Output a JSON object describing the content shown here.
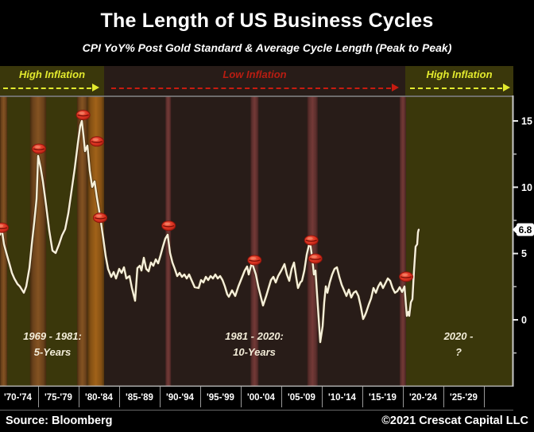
{
  "title": "The Length of US Business Cycles",
  "subtitle": "CPI YoY% Post Gold Standard & Average Cycle Length (Peak to Peak)",
  "header": {
    "left_label": "High Inflation",
    "mid_label": "Low Inflation",
    "right_label": "High Inflation"
  },
  "annotations": [
    {
      "line1": "1969 - 1981:",
      "line2": "5-Years"
    },
    {
      "line1": "1981 - 2020:",
      "line2": "10-Years"
    },
    {
      "line1": "2020 -",
      "line2": "?"
    }
  ],
  "footer": {
    "source": "Source: Bloomberg",
    "copyright": "©2021 Crescat Capital LLC"
  },
  "colors": {
    "accent_yellow": "#e3ea2e",
    "accent_red": "#b81d12",
    "line": "#f6f0da",
    "bg_high_inflation": "#3a370b",
    "bg_low_inflation": "#281c18",
    "marker_red": "#d8301f",
    "axis": "#c8c8c8"
  },
  "chart_data": {
    "type": "line",
    "title": "CPI YoY% Post Gold Standard",
    "ylabel": "CPI YoY %",
    "xlim_years": [
      1970.3,
      2033.6
    ],
    "ylim": [
      -5.0,
      16.9
    ],
    "grid": false,
    "legend": "none",
    "y_major_ticks": [
      0,
      5,
      10,
      15
    ],
    "y_minor_ticks": [
      -2.5,
      2.5,
      7.5,
      12.5
    ],
    "x_tick_labels": [
      "'70-'74",
      "'75-'79",
      "'80-'84",
      "'85-'89",
      "'90-'94",
      "'95-'99",
      "'00-'04",
      "'05-'09",
      "'10-'14",
      "'15-'19",
      "'20-'24",
      "'25-'29"
    ],
    "x_tick_start_year": 1970,
    "x_tick_step_years": 5,
    "current_value": 6.8,
    "current_value_label": "6.8",
    "region_boundaries_years": [
      1983.15,
      2020.3
    ],
    "regions": [
      "High Inflation",
      "Low Inflation",
      "High Inflation"
    ],
    "recession_bands": [
      {
        "from": 1969.7,
        "to": 1971.2,
        "tone": "brown"
      },
      {
        "from": 1974.0,
        "to": 1976.0,
        "tone": "brown"
      },
      {
        "from": 1979.8,
        "to": 1981.1,
        "tone": "brown"
      },
      {
        "from": 1981.1,
        "to": 1983.15,
        "tone": "orange"
      },
      {
        "from": 1990.7,
        "to": 1991.4,
        "tone": "red"
      },
      {
        "from": 2001.2,
        "to": 2002.2,
        "tone": "red"
      },
      {
        "from": 2008.2,
        "to": 2009.5,
        "tone": "red"
      },
      {
        "from": 2019.6,
        "to": 2020.4,
        "tone": "red"
      }
    ],
    "cycle_peak_markers": [
      [
        1970.5,
        6.95
      ],
      [
        1975.1,
        12.9
      ],
      [
        1980.55,
        15.45
      ],
      [
        1982.25,
        13.45
      ],
      [
        1982.65,
        7.7
      ],
      [
        1991.1,
        7.1
      ],
      [
        2001.7,
        4.5
      ],
      [
        2008.7,
        6.0
      ],
      [
        2009.2,
        4.62
      ],
      [
        2020.4,
        3.25
      ]
    ],
    "series": [
      {
        "name": "CPI YoY%",
        "points": [
          [
            1970.29,
            6.42
          ],
          [
            1970.49,
            6.95
          ],
          [
            1970.78,
            5.7
          ],
          [
            1971.08,
            5.04
          ],
          [
            1971.47,
            4.2
          ],
          [
            1971.76,
            3.54
          ],
          [
            1972.06,
            3.12
          ],
          [
            1972.45,
            2.7
          ],
          [
            1972.75,
            2.52
          ],
          [
            1973.24,
            2.04
          ],
          [
            1973.53,
            2.52
          ],
          [
            1973.92,
            3.9
          ],
          [
            1974.22,
            5.7
          ],
          [
            1974.51,
            7.32
          ],
          [
            1974.8,
            9.1
          ],
          [
            1975.0,
            12.36
          ],
          [
            1975.29,
            11.52
          ],
          [
            1975.59,
            10.44
          ],
          [
            1975.98,
            8.64
          ],
          [
            1976.37,
            6.72
          ],
          [
            1976.76,
            5.22
          ],
          [
            1977.16,
            5.04
          ],
          [
            1977.55,
            5.64
          ],
          [
            1977.94,
            6.36
          ],
          [
            1978.33,
            6.84
          ],
          [
            1978.73,
            8.04
          ],
          [
            1979.12,
            9.72
          ],
          [
            1979.51,
            11.4
          ],
          [
            1979.9,
            13.32
          ],
          [
            1980.2,
            14.64
          ],
          [
            1980.39,
            15.0
          ],
          [
            1980.59,
            13.92
          ],
          [
            1980.78,
            12.72
          ],
          [
            1981.08,
            13.14
          ],
          [
            1981.37,
            11.22
          ],
          [
            1981.67,
            10.02
          ],
          [
            1981.96,
            10.44
          ],
          [
            1982.25,
            9.24
          ],
          [
            1982.65,
            7.8
          ],
          [
            1983.04,
            6.12
          ],
          [
            1983.33,
            4.8
          ],
          [
            1983.63,
            3.84
          ],
          [
            1984.02,
            3.24
          ],
          [
            1984.31,
            3.6
          ],
          [
            1984.61,
            3.12
          ],
          [
            1985.0,
            3.84
          ],
          [
            1985.29,
            3.54
          ],
          [
            1985.59,
            3.96
          ],
          [
            1985.88,
            3.12
          ],
          [
            1986.27,
            3.3
          ],
          [
            1986.57,
            2.4
          ],
          [
            1986.96,
            1.44
          ],
          [
            1987.25,
            3.9
          ],
          [
            1987.55,
            4.08
          ],
          [
            1987.75,
            3.72
          ],
          [
            1988.04,
            4.68
          ],
          [
            1988.33,
            3.84
          ],
          [
            1988.63,
            3.66
          ],
          [
            1988.92,
            4.32
          ],
          [
            1989.22,
            4.08
          ],
          [
            1989.51,
            4.56
          ],
          [
            1989.8,
            4.26
          ],
          [
            1990.1,
            4.86
          ],
          [
            1990.39,
            5.52
          ],
          [
            1990.69,
            6.12
          ],
          [
            1990.98,
            6.42
          ],
          [
            1991.27,
            5.04
          ],
          [
            1991.57,
            4.32
          ],
          [
            1991.86,
            3.84
          ],
          [
            1992.16,
            3.3
          ],
          [
            1992.45,
            3.54
          ],
          [
            1992.75,
            3.24
          ],
          [
            1993.04,
            3.42
          ],
          [
            1993.33,
            3.12
          ],
          [
            1993.63,
            3.42
          ],
          [
            1993.92,
            3.0
          ],
          [
            1994.31,
            2.46
          ],
          [
            1994.8,
            2.4
          ],
          [
            1995.1,
            3.0
          ],
          [
            1995.39,
            2.82
          ],
          [
            1995.69,
            3.24
          ],
          [
            1995.98,
            3.0
          ],
          [
            1996.27,
            3.3
          ],
          [
            1996.57,
            3.12
          ],
          [
            1996.86,
            3.42
          ],
          [
            1997.16,
            3.12
          ],
          [
            1997.45,
            3.3
          ],
          [
            1997.75,
            3.0
          ],
          [
            1998.04,
            2.52
          ],
          [
            1998.33,
            1.92
          ],
          [
            1998.53,
            1.74
          ],
          [
            1998.92,
            2.22
          ],
          [
            1999.31,
            1.8
          ],
          [
            1999.71,
            2.52
          ],
          [
            2000.1,
            3.12
          ],
          [
            2000.49,
            3.72
          ],
          [
            2000.78,
            4.02
          ],
          [
            2000.98,
            3.42
          ],
          [
            2001.37,
            4.32
          ],
          [
            2001.86,
            3.42
          ],
          [
            2002.16,
            2.52
          ],
          [
            2002.45,
            1.8
          ],
          [
            2002.75,
            1.08
          ],
          [
            2003.14,
            1.8
          ],
          [
            2003.43,
            2.4
          ],
          [
            2003.73,
            3.0
          ],
          [
            2004.02,
            3.24
          ],
          [
            2004.31,
            2.82
          ],
          [
            2004.61,
            3.3
          ],
          [
            2005.0,
            3.72
          ],
          [
            2005.39,
            4.2
          ],
          [
            2005.69,
            3.42
          ],
          [
            2005.98,
            2.94
          ],
          [
            2006.27,
            3.84
          ],
          [
            2006.57,
            4.32
          ],
          [
            2006.86,
            3.12
          ],
          [
            2007.06,
            2.4
          ],
          [
            2007.35,
            2.82
          ],
          [
            2007.55,
            2.94
          ],
          [
            2007.84,
            3.72
          ],
          [
            2008.14,
            4.92
          ],
          [
            2008.53,
            5.94
          ],
          [
            2008.82,
            4.62
          ],
          [
            2009.02,
            3.42
          ],
          [
            2009.22,
            3.72
          ],
          [
            2009.41,
            1.92
          ],
          [
            2009.61,
            0.12
          ],
          [
            2009.8,
            -1.68
          ],
          [
            2010.1,
            -0.48
          ],
          [
            2010.29,
            1.32
          ],
          [
            2010.49,
            2.52
          ],
          [
            2010.69,
            2.04
          ],
          [
            2010.98,
            2.82
          ],
          [
            2011.27,
            3.42
          ],
          [
            2011.57,
            3.84
          ],
          [
            2011.86,
            3.96
          ],
          [
            2012.16,
            3.24
          ],
          [
            2012.45,
            2.64
          ],
          [
            2012.75,
            2.22
          ],
          [
            2013.04,
            1.8
          ],
          [
            2013.33,
            2.28
          ],
          [
            2013.63,
            1.68
          ],
          [
            2013.92,
            2.04
          ],
          [
            2014.22,
            2.16
          ],
          [
            2014.51,
            1.8
          ],
          [
            2014.8,
            1.02
          ],
          [
            2015.1,
            0.06
          ],
          [
            2015.29,
            0.3
          ],
          [
            2015.49,
            0.6
          ],
          [
            2015.78,
            1.14
          ],
          [
            2016.08,
            1.62
          ],
          [
            2016.37,
            2.4
          ],
          [
            2016.67,
            2.04
          ],
          [
            2016.96,
            2.52
          ],
          [
            2017.25,
            2.82
          ],
          [
            2017.55,
            2.4
          ],
          [
            2017.84,
            2.76
          ],
          [
            2018.14,
            3.12
          ],
          [
            2018.43,
            2.94
          ],
          [
            2018.73,
            2.4
          ],
          [
            2019.02,
            2.04
          ],
          [
            2019.31,
            2.16
          ],
          [
            2019.61,
            2.46
          ],
          [
            2019.9,
            2.1
          ],
          [
            2020.2,
            2.52
          ],
          [
            2020.39,
            1.02
          ],
          [
            2020.49,
            0.3
          ],
          [
            2020.69,
            0.6
          ],
          [
            2020.78,
            0.3
          ],
          [
            2020.98,
            1.32
          ],
          [
            2021.18,
            1.56
          ],
          [
            2021.37,
            3.72
          ],
          [
            2021.57,
            5.52
          ],
          [
            2021.76,
            5.7
          ],
          [
            2021.86,
            6.6
          ],
          [
            2021.95,
            6.8
          ]
        ]
      }
    ]
  }
}
